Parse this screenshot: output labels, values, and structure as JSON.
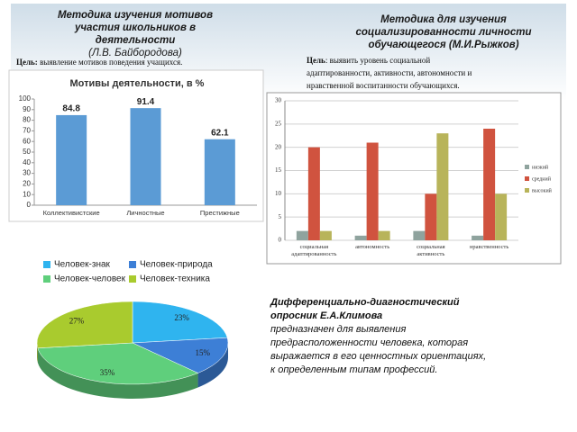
{
  "left_heading": {
    "lines": [
      "Методика изучения мотивов",
      "участия школьников в",
      "деятельности",
      "(Л.В. Байбородова)"
    ],
    "goal_label": "Цель:",
    "goal_text": "выявление мотивов поведения учащихся."
  },
  "right_heading": {
    "lines": [
      "Методика для изучения",
      "социализированности личности",
      "обучающегося (М.И.Рыжков)"
    ],
    "goal_label": "Цель",
    "goal_lines": [
      ": выявить уровень социальной",
      "адаптированности, активности, автономности и",
      "нравственной воспитанности обучающихся."
    ]
  },
  "klimov": {
    "title_lines": [
      "Дифференциально-диагностический",
      "опросник Е.А.Климова"
    ],
    "text_lines": [
      "предназначен для выявления",
      "предрасположенности человека, которая",
      "выражается в его ценностных ориентациях,",
      "к определенным типам профессий."
    ]
  },
  "chart_data": [
    {
      "type": "bar",
      "title": "Мотивы деятельности, в %",
      "categories": [
        "Коллективистские",
        "Личностные",
        "Престижные"
      ],
      "values": [
        84.8,
        91.4,
        62.1
      ],
      "color": "#5b9bd5",
      "ylim": [
        0,
        100
      ],
      "yticks": [
        0,
        10,
        20,
        30,
        40,
        50,
        60,
        70,
        80,
        90,
        100
      ]
    },
    {
      "type": "grouped-bar",
      "categories": [
        "социальная адаптированность",
        "автономность",
        "социальная активность",
        "нравственность"
      ],
      "series": [
        {
          "name": "низкий",
          "color": "#8fa39e",
          "values": [
            2,
            1,
            2,
            1
          ]
        },
        {
          "name": "средний",
          "color": "#d0533f",
          "values": [
            20,
            21,
            10,
            24
          ]
        },
        {
          "name": "высокий",
          "color": "#b8b45a",
          "values": [
            2,
            2,
            23,
            10
          ]
        }
      ],
      "ylim": [
        0,
        30
      ],
      "yticks": [
        0,
        5,
        10,
        15,
        20,
        25,
        30
      ],
      "grid": true,
      "legend": "right"
    },
    {
      "type": "pie",
      "categories": [
        "Человек-знак",
        "Человек-природа",
        "Человек-человек",
        "Человек-техника"
      ],
      "values": [
        23,
        15,
        35,
        27
      ],
      "value_labels": [
        "23%",
        "15%",
        "35%",
        "27%"
      ],
      "colors": [
        "#2fb4ef",
        "#3d7fd6",
        "#5fcf7c",
        "#a9cb2e"
      ],
      "legend": "top"
    }
  ]
}
